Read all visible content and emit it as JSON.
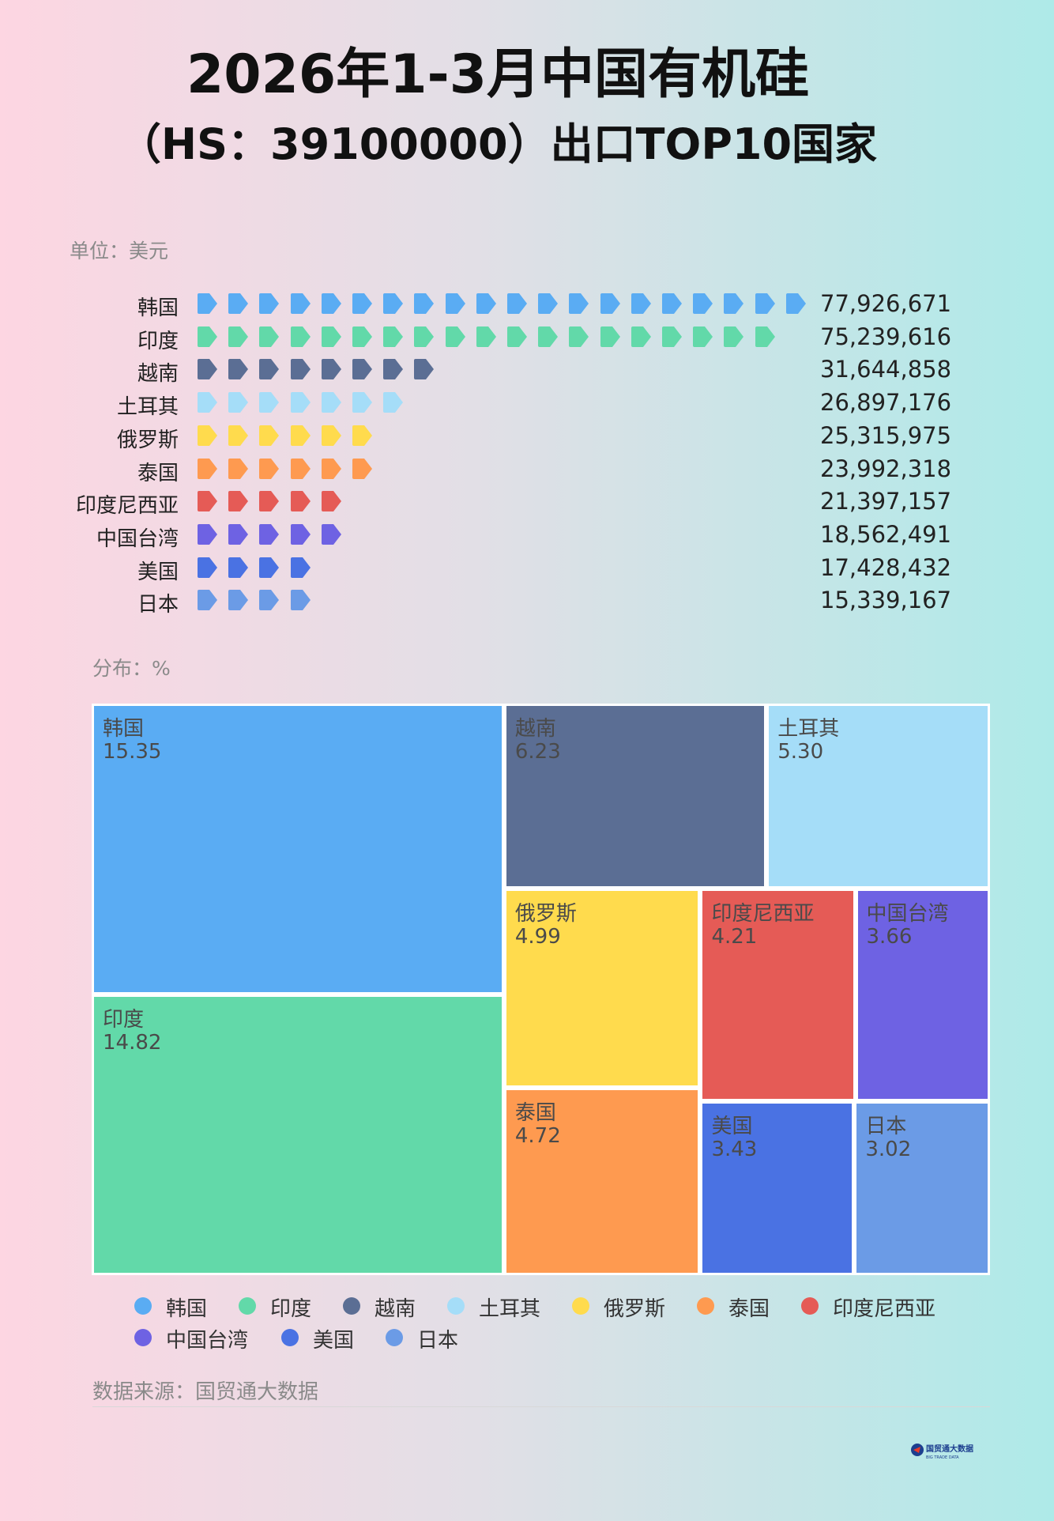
{
  "title_line1": "2026年1-3月中国有机硅",
  "title_line2": "（HS：39100000）出口TOP10国家",
  "unit_label": "单位：美元",
  "distribution_label": "分布：%",
  "source": "数据来源：国贸通大数据",
  "logo": {
    "text": "国贸通大数据",
    "subtext": "BIG TRADE DATA"
  },
  "chart_data": [
    {
      "type": "bar",
      "style": "pictogram",
      "unit": "美元",
      "categories": [
        "韩国",
        "印度",
        "越南",
        "土耳其",
        "俄罗斯",
        "泰国",
        "印度尼西亚",
        "中国台湾",
        "美国",
        "日本"
      ],
      "values": [
        77926671,
        75239616,
        31644858,
        26897176,
        25315975,
        23992318,
        21397157,
        18562491,
        17428432,
        15339167
      ],
      "value_labels": [
        "77,926,671",
        "75,239,616",
        "31,644,858",
        "26,897,176",
        "25,315,975",
        "23,992,318",
        "21,397,157",
        "18,562,491",
        "17,428,432",
        "15,339,167"
      ],
      "icon_counts": [
        20,
        19,
        8,
        7,
        6,
        6,
        5,
        5,
        4,
        4
      ]
    },
    {
      "type": "treemap",
      "unit": "%",
      "categories": [
        "韩国",
        "印度",
        "越南",
        "土耳其",
        "俄罗斯",
        "泰国",
        "印度尼西亚",
        "中国台湾",
        "美国",
        "日本"
      ],
      "values": [
        15.35,
        14.82,
        6.23,
        5.3,
        4.99,
        4.72,
        4.21,
        3.66,
        3.43,
        3.02
      ],
      "value_labels": [
        "15.35",
        "14.82",
        "6.23",
        "5.30",
        "4.99",
        "4.72",
        "4.21",
        "3.66",
        "3.43",
        "3.02"
      ],
      "legend_position": "bottom"
    }
  ],
  "colors": [
    "#5aacf3",
    "#62d9a9",
    "#5b6e94",
    "#a5ddf8",
    "#ffdb4d",
    "#fe9a50",
    "#e55b56",
    "#6e62e3",
    "#4a72e3",
    "#6b9be6"
  ]
}
